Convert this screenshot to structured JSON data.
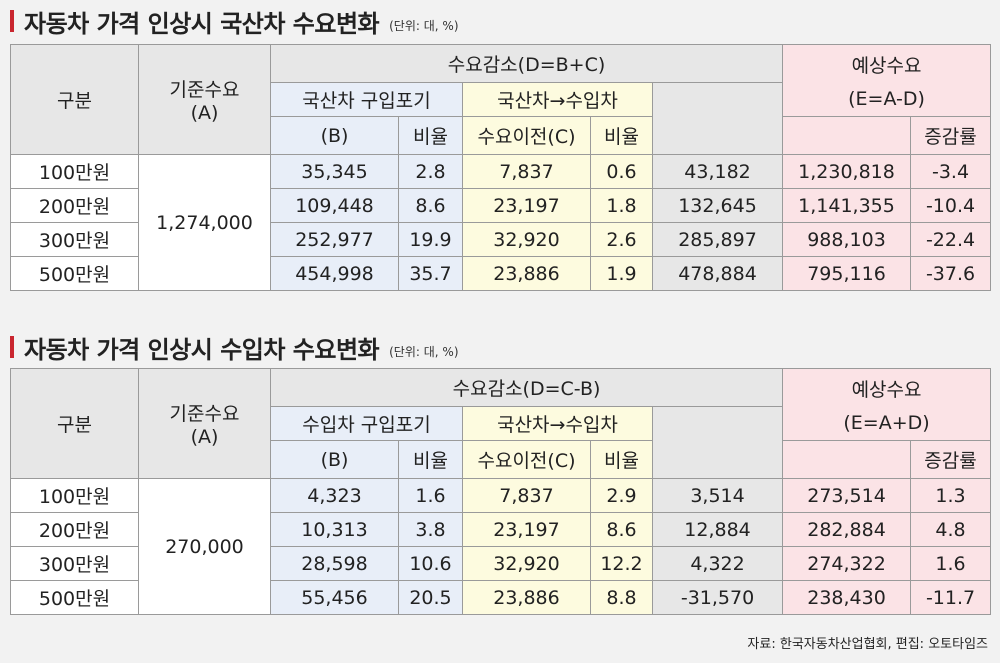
{
  "section1": {
    "title": "자동차 가격 인상시 국산차 수요변화",
    "unit": "(단위: 대, %)",
    "hdr_category": "구분",
    "hdr_base_1": "기준수요",
    "hdr_base_2": "(A)",
    "hdr_decrease": "수요감소(D=B+C)",
    "hdr_col_b_1": "국산차 구입포기",
    "hdr_col_b_2": "(B)",
    "hdr_ratio_b": "비율",
    "hdr_col_c_1": "국산차→수입차",
    "hdr_col_c_2": "수요이전(C)",
    "hdr_ratio_c": "비율",
    "hdr_forecast": "예상수요",
    "hdr_forecast_formula": "(E=A-D)",
    "hdr_change": "증감률",
    "base_value": "1,274,000",
    "rows": [
      {
        "category": "100만원",
        "b": "35,345",
        "b_ratio": "2.8",
        "c": "7,837",
        "c_ratio": "0.6",
        "d": "43,182",
        "e": "1,230,818",
        "change": "-3.4"
      },
      {
        "category": "200만원",
        "b": "109,448",
        "b_ratio": "8.6",
        "c": "23,197",
        "c_ratio": "1.8",
        "d": "132,645",
        "e": "1,141,355",
        "change": "-10.4"
      },
      {
        "category": "300만원",
        "b": "252,977",
        "b_ratio": "19.9",
        "c": "32,920",
        "c_ratio": "2.6",
        "d": "285,897",
        "e": "988,103",
        "change": "-22.4"
      },
      {
        "category": "500만원",
        "b": "454,998",
        "b_ratio": "35.7",
        "c": "23,886",
        "c_ratio": "1.9",
        "d": "478,884",
        "e": "795,116",
        "change": "-37.6"
      }
    ]
  },
  "section2": {
    "title": "자동차 가격 인상시 수입차 수요변화",
    "unit": "(단위: 대, %)",
    "hdr_category": "구분",
    "hdr_base_1": "기준수요",
    "hdr_base_2": "(A)",
    "hdr_decrease": "수요감소(D=C-B)",
    "hdr_col_b_1": "수입차 구입포기",
    "hdr_col_b_2": "(B)",
    "hdr_ratio_b": "비율",
    "hdr_col_c_1": "국산차→수입차",
    "hdr_col_c_2": "수요이전(C)",
    "hdr_ratio_c": "비율",
    "hdr_forecast": "예상수요",
    "hdr_forecast_formula": "(E=A+D)",
    "hdr_change": "증감률",
    "base_value": "270,000",
    "rows": [
      {
        "category": "100만원",
        "b": "4,323",
        "b_ratio": "1.6",
        "c": "7,837",
        "c_ratio": "2.9",
        "d": "3,514",
        "e": "273,514",
        "change": "1.3"
      },
      {
        "category": "200만원",
        "b": "10,313",
        "b_ratio": "3.8",
        "c": "23,197",
        "c_ratio": "8.6",
        "d": "12,884",
        "e": "282,884",
        "change": "4.8"
      },
      {
        "category": "300만원",
        "b": "28,598",
        "b_ratio": "10.6",
        "c": "32,920",
        "c_ratio": "12.2",
        "d": "4,322",
        "e": "274,322",
        "change": "1.6"
      },
      {
        "category": "500만원",
        "b": "55,456",
        "b_ratio": "20.5",
        "c": "23,886",
        "c_ratio": "8.8",
        "d": "-31,570",
        "e": "238,430",
        "change": "-11.7"
      }
    ]
  },
  "source": "자료: 한국자동차산업협회, 편집: 오토타임즈"
}
